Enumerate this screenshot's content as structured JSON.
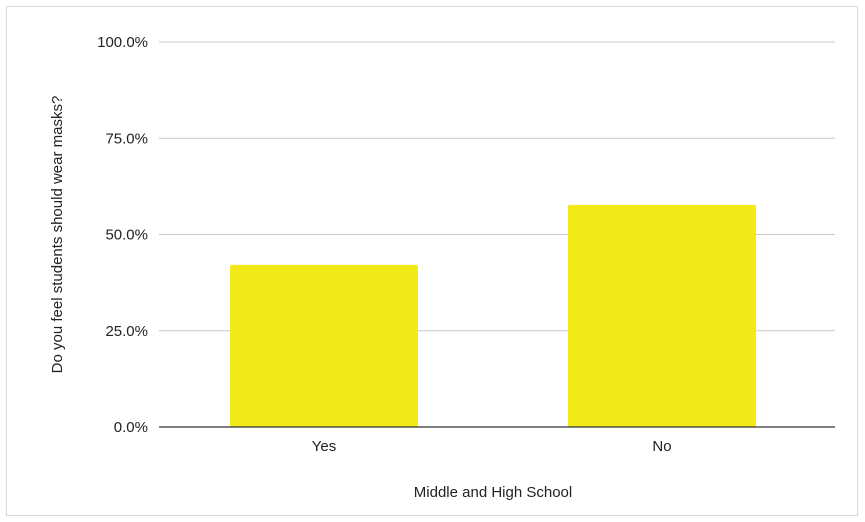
{
  "chart_data": {
    "type": "bar",
    "title": "",
    "xlabel": "Middle and High School",
    "ylabel": "Do you feel students should wear masks?",
    "categories": [
      "Yes",
      "No"
    ],
    "values": [
      42.1,
      57.7
    ],
    "ylim": [
      0,
      100
    ],
    "yticks": [
      "0.0%",
      "25.0%",
      "50.0%",
      "75.0%",
      "100.0%"
    ],
    "ytick_values": [
      0,
      25,
      50,
      75,
      100
    ],
    "grid": true,
    "legend": "none",
    "bar_color": "#f2e917",
    "grid_color": "#c8c8c8",
    "axis_color": "#333333"
  }
}
